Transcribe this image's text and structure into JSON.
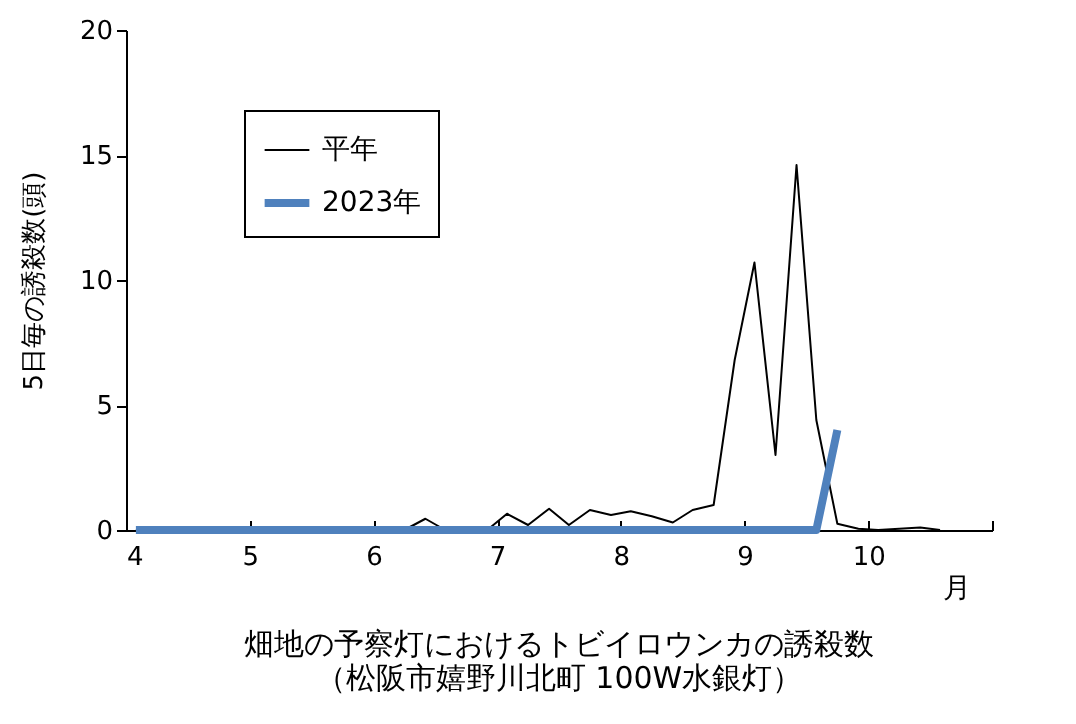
{
  "chart_data": {
    "type": "line",
    "title": "畑地の予察灯におけるトビイロウンカの誘殺数",
    "subtitle": "（松阪市嬉野川北町 100W水銀灯）",
    "xlabel": "月",
    "ylabel": "5日毎の誘殺数(頭)",
    "x": [
      4.08,
      4.25,
      4.42,
      4.58,
      4.75,
      4.92,
      5.08,
      5.25,
      5.42,
      5.58,
      5.75,
      5.92,
      6.08,
      6.25,
      6.42,
      6.58,
      6.75,
      6.92,
      7.08,
      7.25,
      7.42,
      7.58,
      7.75,
      7.92,
      8.08,
      8.25,
      8.42,
      8.58,
      8.75,
      8.92,
      9.08,
      9.25,
      9.42,
      9.58,
      9.75,
      9.92,
      10.08,
      10.25,
      10.42,
      10.58
    ],
    "series": [
      {
        "name": "平年",
        "color": "#000000",
        "values": [
          0,
          0,
          0,
          0,
          0,
          0,
          0,
          0,
          0,
          0,
          0,
          0,
          0,
          0,
          0.45,
          0,
          0,
          0,
          0.65,
          0.2,
          0.85,
          0.2,
          0.8,
          0.6,
          0.75,
          0.55,
          0.3,
          0.8,
          1.0,
          6.8,
          10.7,
          3.0,
          14.6,
          4.4,
          0.25,
          0.05,
          0,
          0.05,
          0.1,
          0
        ]
      },
      {
        "name": "2023年",
        "color": "#4f81bd",
        "values": [
          0,
          0,
          0,
          0,
          0,
          0,
          0,
          0,
          0,
          0,
          0,
          0,
          0,
          0,
          0,
          0,
          0,
          0,
          0,
          0,
          0,
          0,
          0,
          0,
          0,
          0,
          0,
          0,
          0,
          0,
          0,
          0,
          0,
          0,
          4.0,
          null,
          null,
          null,
          null,
          null
        ]
      }
    ],
    "xlim": [
      4,
      11
    ],
    "xticks": [
      4,
      5,
      6,
      7,
      8,
      9,
      10,
      {
        "value": 11,
        "label": null
      }
    ],
    "ylim": [
      0,
      20
    ],
    "yticks": [
      0,
      5,
      10,
      15,
      20
    ],
    "legend": "top left",
    "grid": false,
    "marker": "none"
  }
}
